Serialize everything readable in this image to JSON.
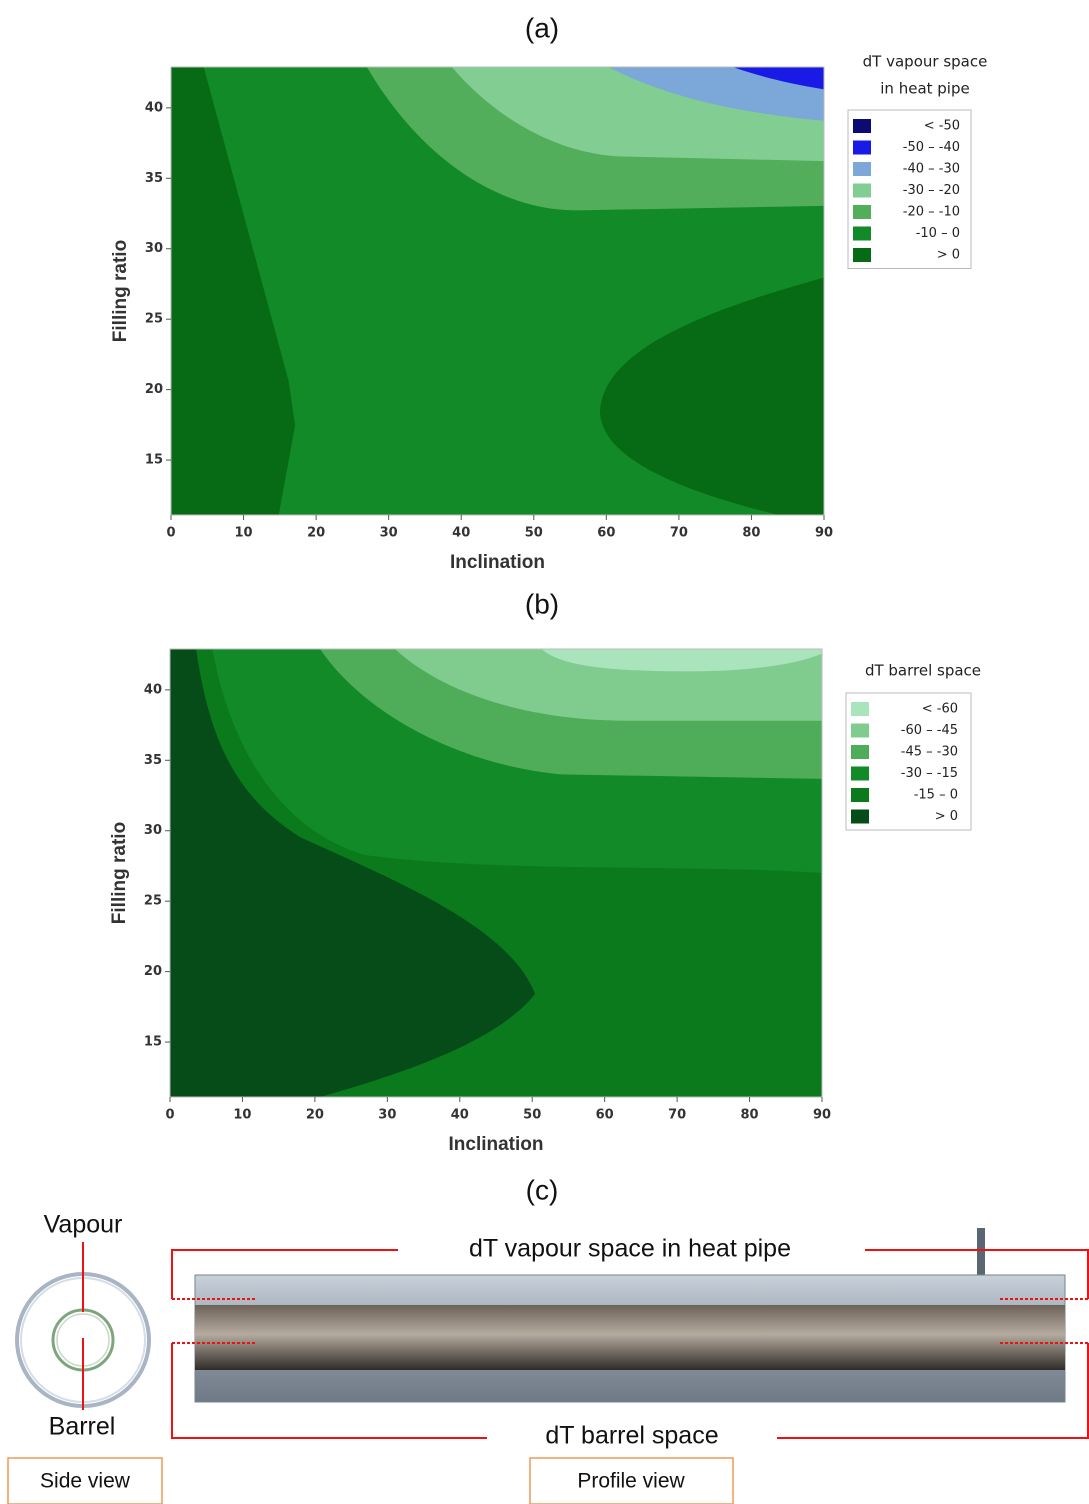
{
  "chart_data": [
    {
      "type": "contour",
      "title": "(a)",
      "x_label": "Inclination",
      "y_label": "Filling ratio",
      "xlim": [
        0,
        90
      ],
      "ylim": [
        11.1,
        42.9
      ],
      "xticks": [
        0,
        10,
        20,
        30,
        40,
        50,
        60,
        70,
        80,
        90
      ],
      "yticks": [
        15,
        20,
        25,
        30,
        35,
        40
      ],
      "legend_title": [
        "dT vapour space",
        "in heat pipe"
      ],
      "levels": [
        {
          "label": "< -50",
          "color": "#0b0b72"
        },
        {
          "label": "-50 – -40",
          "color": "#1a1ae6"
        },
        {
          "label": "-40 – -30",
          "color": "#7ba7d9"
        },
        {
          "label": "-30 – -20",
          "color": "#82cd92"
        },
        {
          "label": "-20 – -10",
          "color": "#52ae5b"
        },
        {
          "label": "-10 – 0",
          "color": "#118a27"
        },
        {
          "label": "> 0",
          "color": "#066b14"
        }
      ]
    },
    {
      "type": "contour",
      "title": "(b)",
      "x_label": "Inclination",
      "y_label": "Filling ratio",
      "xlim": [
        0,
        90
      ],
      "ylim": [
        11.1,
        42.9
      ],
      "xticks": [
        0,
        10,
        20,
        30,
        40,
        50,
        60,
        70,
        80,
        90
      ],
      "yticks": [
        15,
        20,
        25,
        30,
        35,
        40
      ],
      "legend_title": [
        "dT barrel space"
      ],
      "levels": [
        {
          "label": "< -60",
          "color": "#a9e4bd"
        },
        {
          "label": "-60 – -45",
          "color": "#80cc8e"
        },
        {
          "label": "-45 – -30",
          "color": "#4fac59"
        },
        {
          "label": "-30 – -15",
          "color": "#118a27"
        },
        {
          "label": "-15 – 0",
          "color": "#0a7a1c"
        },
        {
          "label": "> 0",
          "color": "#054c18"
        }
      ]
    }
  ],
  "diagram": {
    "title": "(c)",
    "vapour": "Vapour",
    "barrel": "Barrel",
    "vapour_space": "dT vapour space in heat pipe",
    "barrel_space": "dT barrel space",
    "side_view": "Side view",
    "profile_view": "Profile view"
  }
}
